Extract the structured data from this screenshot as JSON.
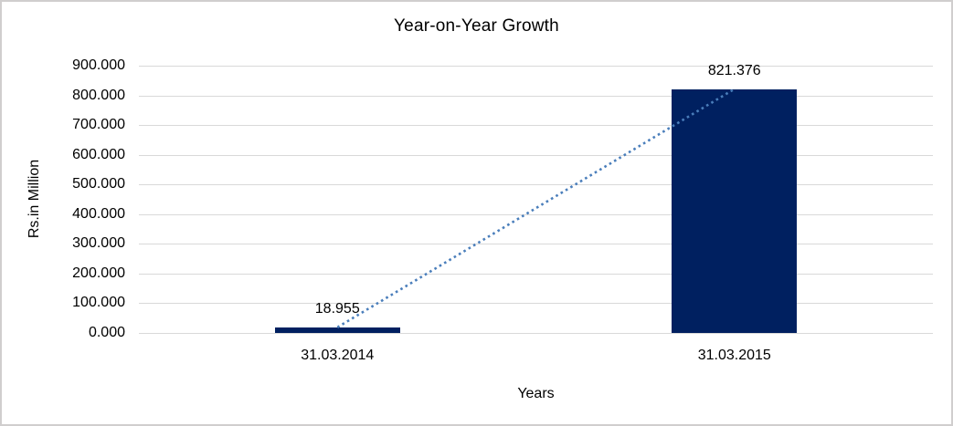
{
  "chart_data": {
    "type": "bar",
    "title": "Year-on-Year Growth",
    "xlabel": "Years",
    "ylabel": "Rs.in Million",
    "categories": [
      "31.03.2014",
      "31.03.2015"
    ],
    "values": [
      18.955,
      821.376
    ],
    "data_labels": [
      "18.955",
      "821.376"
    ],
    "yticks": [
      "900.000",
      "800.000",
      "700.000",
      "600.000",
      "500.000",
      "400.000",
      "300.000",
      "200.000",
      "100.000",
      "0.000"
    ],
    "ylim": [
      0,
      900
    ],
    "grid": true,
    "legend": "none",
    "bar_color": "#002060",
    "gridline_color": "#d9d9d9",
    "trendline": {
      "style": "dotted",
      "color": "#4a7ebb",
      "connects": "bar tops from 18.955 to 821.376"
    }
  }
}
